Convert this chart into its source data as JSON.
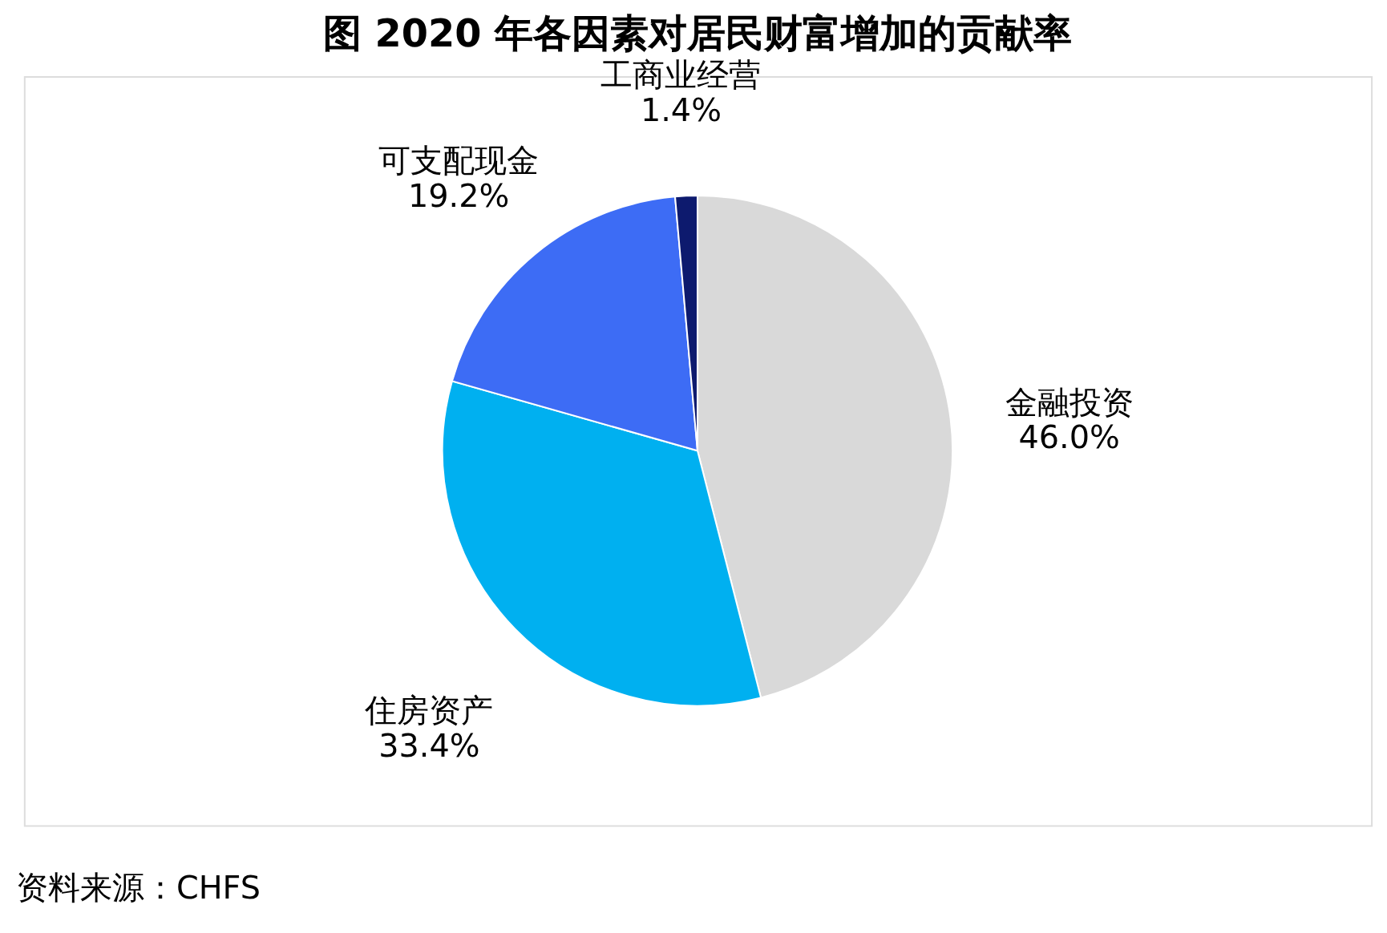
{
  "chart_data": {
    "type": "pie",
    "title": "图  2020 年各因素对居民财富增加的贡献率",
    "categories": [
      "金融投资",
      "住房资产",
      "可支配现金",
      "工商业经营"
    ],
    "values": [
      46.0,
      33.4,
      19.2,
      1.4
    ],
    "value_labels": [
      "46.0%",
      "33.4%",
      "19.2%",
      "1.4%"
    ],
    "colors": [
      "#d9d9d9",
      "#00b0f0",
      "#3d6cf5",
      "#0d1a6e"
    ],
    "legend": false,
    "annotations": [
      "资料来源：CHFS"
    ]
  }
}
